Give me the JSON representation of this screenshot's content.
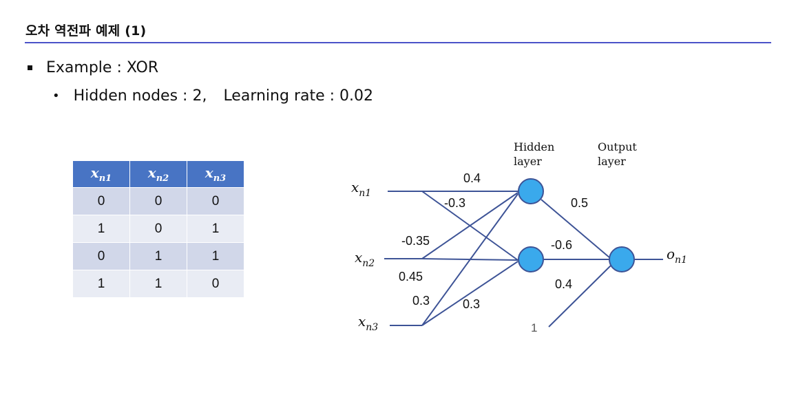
{
  "title": "오차 역전파 예제 (1)",
  "bullet1": "Example : XOR",
  "bullet2": {
    "part1": "Hidden nodes : 2,",
    "part2": "Learning rate : 0.02"
  },
  "table": {
    "headers": [
      {
        "base": "x",
        "sub": "n1"
      },
      {
        "base": "x",
        "sub": "n2"
      },
      {
        "base": "x",
        "sub": "n3"
      }
    ],
    "rows": [
      [
        "0",
        "0",
        "0"
      ],
      [
        "1",
        "0",
        "1"
      ],
      [
        "0",
        "1",
        "1"
      ],
      [
        "1",
        "1",
        "0"
      ]
    ]
  },
  "network": {
    "layer_labels": {
      "hidden": [
        "Hidden",
        "layer"
      ],
      "output": [
        "Output",
        "layer"
      ]
    },
    "inputs": [
      {
        "base": "x",
        "sub": "n1"
      },
      {
        "base": "x",
        "sub": "n2"
      },
      {
        "base": "x",
        "sub": "n3"
      }
    ],
    "output": {
      "base": "o",
      "sub": "n1"
    },
    "bias": "1",
    "weights": [
      "0.4",
      "-0.3",
      "-0.35",
      "0.45",
      "0.3",
      "0.3",
      "0.5",
      "-0.6",
      "0.4"
    ],
    "node_color": "#3aa9ec",
    "line_color": "#3d5396"
  }
}
